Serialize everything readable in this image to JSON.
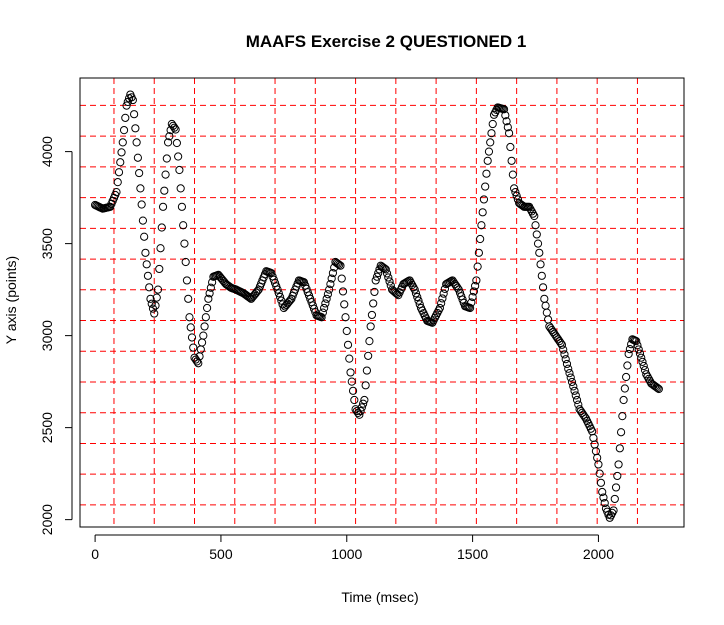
{
  "chart_data": {
    "type": "scatter",
    "title": "MAAFS Exercise 2 QUESTIONED 1",
    "xlabel": "Time (msec)",
    "ylabel": "Y axis (points)",
    "xlim": [
      -60,
      2340
    ],
    "ylim": [
      1960,
      4400
    ],
    "x_ticks": [
      0,
      500,
      1000,
      1500,
      2000
    ],
    "y_ticks": [
      2000,
      2500,
      3000,
      3500,
      4000
    ],
    "grid": {
      "color": "#ff0000",
      "style": "dashed",
      "x": [
        75,
        235,
        395,
        555,
        715,
        875,
        1035,
        1195,
        1355,
        1515,
        1675,
        1835,
        1995,
        2155
      ],
      "y": [
        2080,
        2247,
        2414,
        2581,
        2748,
        2915,
        3082,
        3249,
        3416,
        3583,
        3750,
        3917,
        4084,
        4251
      ]
    },
    "marker": "open-circle",
    "marker_color": "#000000",
    "keypoints": [
      [
        0,
        3710
      ],
      [
        30,
        3690
      ],
      [
        60,
        3700
      ],
      [
        85,
        3780
      ],
      [
        110,
        4050
      ],
      [
        125,
        4250
      ],
      [
        140,
        4310
      ],
      [
        150,
        4280
      ],
      [
        165,
        4050
      ],
      [
        180,
        3800
      ],
      [
        200,
        3450
      ],
      [
        220,
        3200
      ],
      [
        235,
        3120
      ],
      [
        250,
        3250
      ],
      [
        270,
        3700
      ],
      [
        290,
        4050
      ],
      [
        305,
        4150
      ],
      [
        320,
        4120
      ],
      [
        335,
        3900
      ],
      [
        355,
        3500
      ],
      [
        375,
        3100
      ],
      [
        395,
        2880
      ],
      [
        410,
        2850
      ],
      [
        430,
        3000
      ],
      [
        450,
        3200
      ],
      [
        470,
        3320
      ],
      [
        490,
        3330
      ],
      [
        520,
        3280
      ],
      [
        540,
        3260
      ],
      [
        560,
        3250
      ],
      [
        590,
        3230
      ],
      [
        620,
        3200
      ],
      [
        650,
        3250
      ],
      [
        680,
        3350
      ],
      [
        700,
        3340
      ],
      [
        725,
        3250
      ],
      [
        750,
        3150
      ],
      [
        780,
        3200
      ],
      [
        810,
        3300
      ],
      [
        830,
        3290
      ],
      [
        855,
        3200
      ],
      [
        880,
        3110
      ],
      [
        900,
        3100
      ],
      [
        930,
        3250
      ],
      [
        955,
        3400
      ],
      [
        975,
        3380
      ],
      [
        995,
        3100
      ],
      [
        1015,
        2800
      ],
      [
        1035,
        2600
      ],
      [
        1050,
        2570
      ],
      [
        1070,
        2650
      ],
      [
        1095,
        3050
      ],
      [
        1115,
        3300
      ],
      [
        1135,
        3380
      ],
      [
        1155,
        3360
      ],
      [
        1180,
        3250
      ],
      [
        1205,
        3220
      ],
      [
        1225,
        3280
      ],
      [
        1250,
        3300
      ],
      [
        1270,
        3250
      ],
      [
        1295,
        3150
      ],
      [
        1320,
        3080
      ],
      [
        1340,
        3070
      ],
      [
        1370,
        3150
      ],
      [
        1395,
        3280
      ],
      [
        1420,
        3300
      ],
      [
        1445,
        3250
      ],
      [
        1470,
        3160
      ],
      [
        1490,
        3150
      ],
      [
        1515,
        3300
      ],
      [
        1535,
        3600
      ],
      [
        1560,
        3950
      ],
      [
        1585,
        4200
      ],
      [
        1600,
        4240
      ],
      [
        1625,
        4230
      ],
      [
        1645,
        4100
      ],
      [
        1665,
        3800
      ],
      [
        1685,
        3720
      ],
      [
        1705,
        3700
      ],
      [
        1725,
        3700
      ],
      [
        1745,
        3650
      ],
      [
        1765,
        3450
      ],
      [
        1785,
        3200
      ],
      [
        1805,
        3050
      ],
      [
        1830,
        3000
      ],
      [
        1855,
        2950
      ],
      [
        1880,
        2820
      ],
      [
        1905,
        2700
      ],
      [
        1925,
        2600
      ],
      [
        1950,
        2550
      ],
      [
        1975,
        2480
      ],
      [
        2000,
        2300
      ],
      [
        2015,
        2150
      ],
      [
        2030,
        2060
      ],
      [
        2045,
        2010
      ],
      [
        2060,
        2050
      ],
      [
        2080,
        2300
      ],
      [
        2100,
        2650
      ],
      [
        2120,
        2900
      ],
      [
        2135,
        2980
      ],
      [
        2150,
        2970
      ],
      [
        2170,
        2880
      ],
      [
        2190,
        2790
      ],
      [
        2210,
        2740
      ],
      [
        2240,
        2710
      ]
    ]
  }
}
